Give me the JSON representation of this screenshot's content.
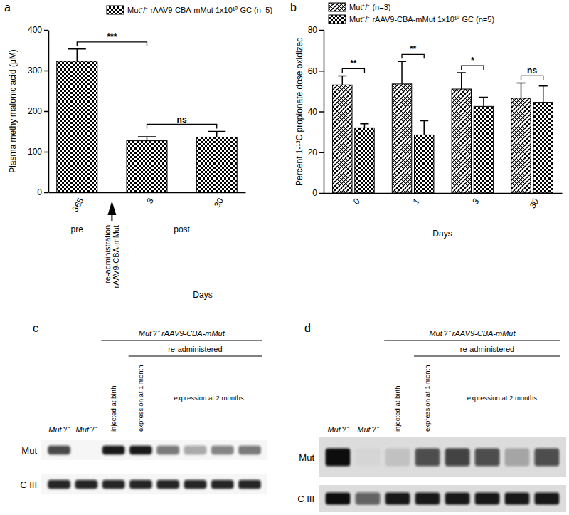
{
  "chart_data": [
    {
      "type": "bar",
      "panel": "a",
      "y_label": "Plasma methylmalonic acid (μM)",
      "x_label": "Days",
      "categories": [
        "365",
        "3",
        "30"
      ],
      "series": [
        {
          "name": "Mut⁻/⁻ rAAV9-CBA-mMut 1x10¹⁰ GC (n=5)",
          "color": "#000000",
          "values": [
            323,
            127,
            136
          ],
          "errors": [
            30,
            10,
            14
          ]
        }
      ],
      "ylim": [
        0,
        400
      ],
      "yticks": [
        0,
        100,
        200,
        300,
        400
      ],
      "annotations": [
        {
          "text": "***",
          "from": 0,
          "to": 1
        },
        {
          "text": "ns",
          "from": 1,
          "to": 2
        }
      ],
      "group_labels": [
        {
          "text": "pre",
          "categories": [
            0
          ]
        },
        {
          "text": "post",
          "categories": [
            1,
            2
          ]
        }
      ],
      "event": {
        "lines": [
          "re-administration",
          "rAAV9-CBA-mMut"
        ],
        "after": 0
      }
    },
    {
      "type": "bar",
      "panel": "b",
      "y_label": "Percent 1-¹³C propionate dose oxidized",
      "x_label": "Days",
      "categories": [
        "0",
        "1",
        "3",
        "30"
      ],
      "series": [
        {
          "name": "Mut⁺/⁻ (n=3)",
          "color": "#000000",
          "values": [
            53,
            53.5,
            51,
            46.5
          ],
          "errors": [
            4.5,
            11,
            8,
            7.5
          ]
        },
        {
          "name": "Mut⁻/⁻ rAAV9-CBA-mMut 1x10¹⁰ GC (n=5)",
          "color": "#000000",
          "values": [
            32,
            28.5,
            42.5,
            44.5
          ],
          "errors": [
            2,
            7,
            4.5,
            8
          ]
        }
      ],
      "ylim": [
        0,
        80
      ],
      "yticks": [
        0,
        20,
        40,
        60,
        80
      ],
      "annotations": [
        {
          "text": "**",
          "category": 0
        },
        {
          "text": "**",
          "category": 1
        },
        {
          "text": "*",
          "category": 2
        },
        {
          "text": "ns",
          "category": 3
        }
      ]
    }
  ],
  "blots": [
    {
      "panel": "c",
      "lane_labels": [
        {
          "label": "Mut⁺/⁻",
          "lanes": 1
        },
        {
          "label": "Mut⁻/⁻",
          "lanes": 1
        },
        {
          "label": "injected at birth",
          "lanes": 1
        },
        {
          "label": "expression at 1 month",
          "lanes": 1
        },
        {
          "label": "expression at 2 months",
          "lanes": 4
        }
      ],
      "groups": [
        {
          "label": "Mut⁻/⁻ rAAV9-CBA-mMut",
          "from": 2,
          "to": 7
        },
        {
          "label": "re-administered",
          "from": 3,
          "to": 7
        }
      ],
      "rows": [
        {
          "label": "Mut",
          "intensity": [
            0.75,
            0,
            0.95,
            0.95,
            0.55,
            0.35,
            0.5,
            0.55
          ]
        },
        {
          "label": "C III",
          "intensity": [
            0.9,
            0.9,
            0.9,
            0.9,
            0.9,
            0.9,
            0.9,
            0.9
          ]
        }
      ]
    },
    {
      "panel": "d",
      "lane_labels": [
        {
          "label": "Mut⁺/⁻",
          "lanes": 1
        },
        {
          "label": "Mut⁻/⁻",
          "lanes": 1
        },
        {
          "label": "injected at birth",
          "lanes": 1
        },
        {
          "label": "expression at 1 month",
          "lanes": 1
        },
        {
          "label": "expression at 2 months",
          "lanes": 4
        }
      ],
      "groups": [
        {
          "label": "Mut⁻/⁻ rAAV9-CBA-mMut",
          "from": 2,
          "to": 7
        },
        {
          "label": "re-administered",
          "from": 3,
          "to": 7
        }
      ],
      "rows": [
        {
          "label": "Mut",
          "intensity": [
            1,
            0.03,
            0.12,
            0.7,
            0.75,
            0.7,
            0.25,
            0.7
          ]
        },
        {
          "label": "C III",
          "intensity": [
            1,
            0.6,
            0.95,
            0.95,
            0.95,
            0.95,
            0.95,
            0.95
          ]
        }
      ]
    }
  ]
}
